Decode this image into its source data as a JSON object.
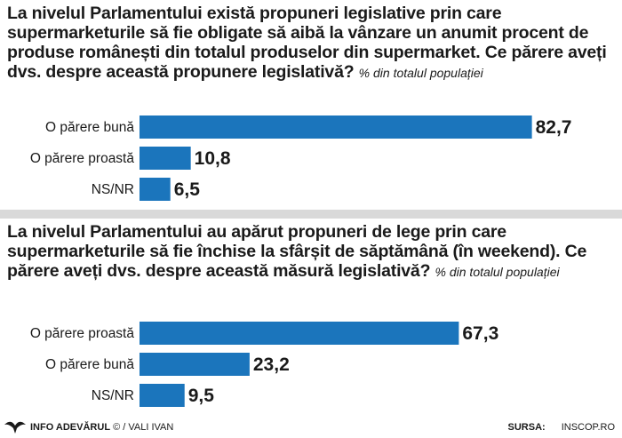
{
  "accent_color": "#1b75bc",
  "panels": [
    {
      "question": "La nivelul Parlamentului există propuneri legislative prin care supermarketurile să fie obligate să aibă la vânzare un anumit procent de produse românești din totalul produselor din supermarket. Ce părere aveți dvs. despre această propunere legislativă?",
      "subtitle": "% din totalul populației"
    },
    {
      "question": "La nivelul Parlamentului au apărut propuneri de lege prin care supermarketurile să fie închise la sfârșit de săptămână (în weekend). Ce părere aveți dvs. despre această măsură legislativă?",
      "subtitle": "% din totalul populației"
    }
  ],
  "chart_data": [
    {
      "type": "bar",
      "orientation": "horizontal",
      "categories": [
        "O părere bună",
        "O părere proastă",
        "NS/NR"
      ],
      "values": [
        82.7,
        10.8,
        6.5
      ],
      "value_labels": [
        "82,7",
        "10,8",
        "6,5"
      ],
      "xlim": [
        0,
        100
      ]
    },
    {
      "type": "bar",
      "orientation": "horizontal",
      "categories": [
        "O părere proastă",
        "O părere bună",
        "NS/NR"
      ],
      "values": [
        67.3,
        23.2,
        9.5
      ],
      "value_labels": [
        "67,3",
        "23,2",
        "9,5"
      ],
      "xlim": [
        0,
        100
      ]
    }
  ],
  "footer": {
    "brand_icon": "eagle-icon",
    "brand": "INFO ADEVĂRUL",
    "credit": "© / VALI IVAN",
    "source_label": "SURSA:",
    "source_value": "INSCOP.RO"
  }
}
